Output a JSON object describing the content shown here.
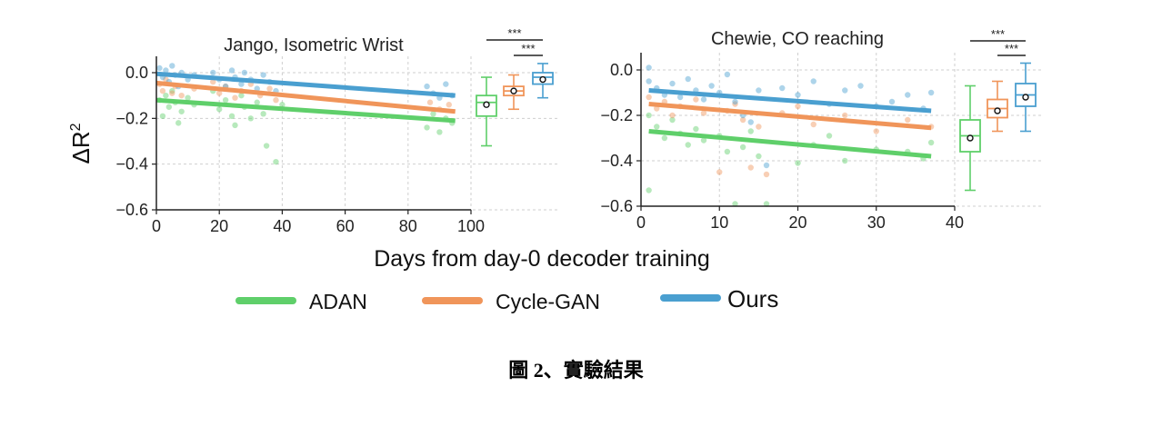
{
  "caption": "圖 2、實驗結果",
  "shared_xlabel": "Days from day-0 decoder training",
  "ylabel": "ΔR",
  "ylabel_sup": "2",
  "legend": [
    {
      "label": "ADAN",
      "color": "#5fcf6a"
    },
    {
      "label": "Cycle-GAN",
      "color": "#f0955a"
    },
    {
      "label": "Ours",
      "color": "#4a9fd0"
    }
  ],
  "significance_marker": "***",
  "chart_data": [
    {
      "type": "scatter",
      "title": "Jango, Isometric Wrist",
      "xlim": [
        0,
        100
      ],
      "ylim": [
        -0.6,
        0.05
      ],
      "xticks": [
        0,
        20,
        40,
        60,
        80,
        100
      ],
      "yticks": [
        0.0,
        -0.2,
        -0.4,
        -0.6
      ],
      "ytick_labels": [
        "0.0",
        "−0.2",
        "−0.4",
        "−0.6"
      ],
      "grid": true,
      "series": [
        {
          "name": "ADAN",
          "color": "#5fcf6a",
          "trend": [
            [
              0,
              -0.12
            ],
            [
              95,
              -0.21
            ]
          ],
          "points": [
            [
              1,
              -0.12
            ],
            [
              2,
              -0.19
            ],
            [
              3,
              -0.1
            ],
            [
              4,
              -0.15
            ],
            [
              5,
              -0.08
            ],
            [
              6,
              -0.13
            ],
            [
              7,
              -0.22
            ],
            [
              8,
              -0.17
            ],
            [
              10,
              -0.11
            ],
            [
              12,
              -0.14
            ],
            [
              18,
              -0.08
            ],
            [
              20,
              -0.16
            ],
            [
              22,
              -0.12
            ],
            [
              24,
              -0.19
            ],
            [
              25,
              -0.23
            ],
            [
              27,
              -0.1
            ],
            [
              28,
              -0.15
            ],
            [
              30,
              -0.2
            ],
            [
              32,
              -0.13
            ],
            [
              34,
              -0.18
            ],
            [
              35,
              -0.32
            ],
            [
              38,
              -0.39
            ],
            [
              40,
              -0.14
            ],
            [
              86,
              -0.24
            ],
            [
              88,
              -0.18
            ],
            [
              90,
              -0.26
            ],
            [
              92,
              -0.2
            ],
            [
              94,
              -0.22
            ]
          ],
          "box": {
            "whisker_low": -0.32,
            "q1": -0.19,
            "median": -0.13,
            "q3": -0.1,
            "whisker_high": -0.02,
            "mean": -0.14
          }
        },
        {
          "name": "Cycle-GAN",
          "color": "#f0955a",
          "trend": [
            [
              0,
              -0.045
            ],
            [
              95,
              -0.17
            ]
          ],
          "points": [
            [
              1,
              -0.05
            ],
            [
              2,
              -0.08
            ],
            [
              3,
              -0.03
            ],
            [
              5,
              -0.09
            ],
            [
              6,
              -0.06
            ],
            [
              8,
              -0.1
            ],
            [
              12,
              -0.07
            ],
            [
              18,
              -0.04
            ],
            [
              20,
              -0.09
            ],
            [
              22,
              -0.06
            ],
            [
              25,
              -0.11
            ],
            [
              27,
              -0.08
            ],
            [
              30,
              -0.05
            ],
            [
              33,
              -0.1
            ],
            [
              36,
              -0.07
            ],
            [
              38,
              -0.12
            ],
            [
              87,
              -0.13
            ],
            [
              90,
              -0.16
            ],
            [
              93,
              -0.14
            ]
          ],
          "box": {
            "whisker_low": -0.16,
            "q1": -0.1,
            "median": -0.08,
            "q3": -0.06,
            "whisker_high": -0.01,
            "mean": -0.08
          }
        },
        {
          "name": "Ours",
          "color": "#4a9fd0",
          "trend": [
            [
              0,
              -0.005
            ],
            [
              95,
              -0.1
            ]
          ],
          "points": [
            [
              1,
              0.02
            ],
            [
              2,
              -0.02
            ],
            [
              3,
              0.01
            ],
            [
              4,
              -0.04
            ],
            [
              5,
              0.03
            ],
            [
              6,
              -0.01
            ],
            [
              7,
              -0.06
            ],
            [
              8,
              0.0
            ],
            [
              10,
              -0.03
            ],
            [
              12,
              -0.01
            ],
            [
              18,
              0.0
            ],
            [
              20,
              -0.03
            ],
            [
              22,
              -0.06
            ],
            [
              24,
              0.01
            ],
            [
              25,
              -0.02
            ],
            [
              27,
              -0.05
            ],
            [
              28,
              0.0
            ],
            [
              30,
              -0.03
            ],
            [
              32,
              -0.07
            ],
            [
              34,
              -0.01
            ],
            [
              36,
              -0.04
            ],
            [
              38,
              -0.08
            ],
            [
              86,
              -0.06
            ],
            [
              88,
              -0.09
            ],
            [
              90,
              -0.11
            ],
            [
              92,
              -0.05
            ],
            [
              94,
              -0.1
            ]
          ],
          "box": {
            "whisker_low": -0.11,
            "q1": -0.05,
            "median": -0.02,
            "q3": 0.0,
            "whisker_high": 0.04,
            "mean": -0.03
          }
        }
      ]
    },
    {
      "type": "scatter",
      "title": "Chewie, CO reaching",
      "xlim": [
        0,
        40
      ],
      "ylim": [
        -0.6,
        0.05
      ],
      "xticks": [
        0,
        10,
        20,
        30,
        40
      ],
      "yticks": [
        0.0,
        -0.2,
        -0.4,
        -0.6
      ],
      "ytick_labels": [
        "0.0",
        "−0.2",
        "−0.4",
        "−0.6"
      ],
      "grid": true,
      "series": [
        {
          "name": "ADAN",
          "color": "#5fcf6a",
          "trend": [
            [
              1,
              -0.27
            ],
            [
              37,
              -0.38
            ]
          ],
          "points": [
            [
              1,
              -0.53
            ],
            [
              1,
              -0.2
            ],
            [
              2,
              -0.25
            ],
            [
              3,
              -0.3
            ],
            [
              4,
              -0.22
            ],
            [
              5,
              -0.28
            ],
            [
              6,
              -0.33
            ],
            [
              7,
              -0.26
            ],
            [
              8,
              -0.31
            ],
            [
              10,
              -0.29
            ],
            [
              11,
              -0.36
            ],
            [
              12,
              -0.59
            ],
            [
              13,
              -0.34
            ],
            [
              14,
              -0.27
            ],
            [
              15,
              -0.38
            ],
            [
              16,
              -0.59
            ],
            [
              20,
              -0.41
            ],
            [
              22,
              -0.33
            ],
            [
              24,
              -0.29
            ],
            [
              26,
              -0.4
            ],
            [
              30,
              -0.35
            ],
            [
              34,
              -0.36
            ],
            [
              36,
              -0.39
            ],
            [
              37,
              -0.32
            ]
          ],
          "box": {
            "whisker_low": -0.53,
            "q1": -0.36,
            "median": -0.29,
            "q3": -0.22,
            "whisker_high": -0.07,
            "mean": -0.3
          }
        },
        {
          "name": "Cycle-GAN",
          "color": "#f0955a",
          "trend": [
            [
              1,
              -0.15
            ],
            [
              37,
              -0.255
            ]
          ],
          "points": [
            [
              1,
              -0.12
            ],
            [
              2,
              -0.17
            ],
            [
              3,
              -0.14
            ],
            [
              4,
              -0.2
            ],
            [
              5,
              -0.16
            ],
            [
              7,
              -0.13
            ],
            [
              8,
              -0.19
            ],
            [
              10,
              -0.45
            ],
            [
              11,
              -0.18
            ],
            [
              12,
              -0.15
            ],
            [
              13,
              -0.22
            ],
            [
              14,
              -0.43
            ],
            [
              15,
              -0.25
            ],
            [
              16,
              -0.46
            ],
            [
              18,
              -0.19
            ],
            [
              20,
              -0.16
            ],
            [
              22,
              -0.24
            ],
            [
              26,
              -0.2
            ],
            [
              30,
              -0.27
            ],
            [
              34,
              -0.22
            ],
            [
              37,
              -0.25
            ]
          ],
          "box": {
            "whisker_low": -0.27,
            "q1": -0.21,
            "median": -0.17,
            "q3": -0.13,
            "whisker_high": -0.05,
            "mean": -0.18
          }
        },
        {
          "name": "Ours",
          "color": "#4a9fd0",
          "trend": [
            [
              1,
              -0.09
            ],
            [
              37,
              -0.18
            ]
          ],
          "points": [
            [
              1,
              0.01
            ],
            [
              1,
              -0.05
            ],
            [
              2,
              -0.08
            ],
            [
              3,
              -0.11
            ],
            [
              4,
              -0.06
            ],
            [
              5,
              -0.12
            ],
            [
              6,
              -0.04
            ],
            [
              7,
              -0.09
            ],
            [
              8,
              -0.13
            ],
            [
              9,
              -0.07
            ],
            [
              10,
              -0.1
            ],
            [
              11,
              -0.02
            ],
            [
              12,
              -0.14
            ],
            [
              13,
              -0.2
            ],
            [
              14,
              -0.23
            ],
            [
              15,
              -0.09
            ],
            [
              16,
              -0.42
            ],
            [
              18,
              -0.08
            ],
            [
              20,
              -0.11
            ],
            [
              22,
              -0.05
            ],
            [
              24,
              -0.15
            ],
            [
              26,
              -0.09
            ],
            [
              28,
              -0.07
            ],
            [
              30,
              -0.16
            ],
            [
              32,
              -0.14
            ],
            [
              34,
              -0.11
            ],
            [
              36,
              -0.17
            ],
            [
              37,
              -0.1
            ]
          ],
          "box": {
            "whisker_low": -0.27,
            "q1": -0.16,
            "median": -0.11,
            "q3": -0.06,
            "whisker_high": 0.03,
            "mean": -0.12
          }
        }
      ]
    }
  ]
}
